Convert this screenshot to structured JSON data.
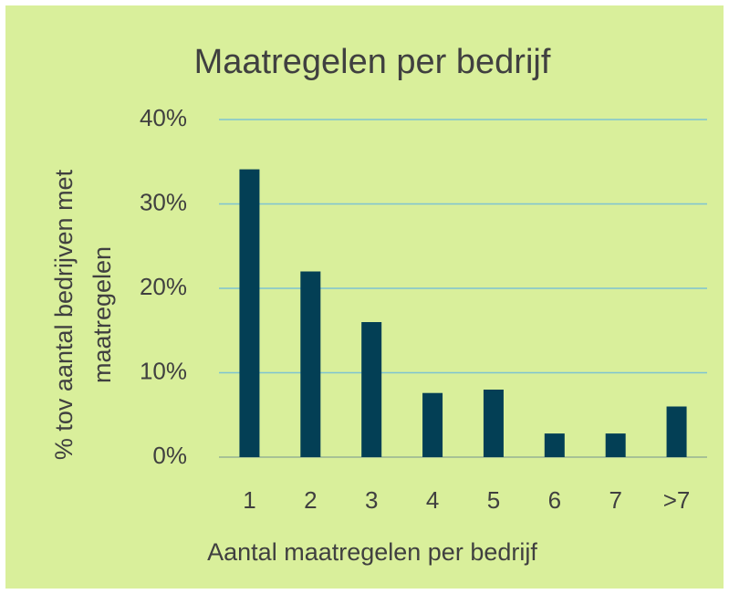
{
  "chart_data": {
    "type": "bar",
    "title": "Maatregelen per bedrijf",
    "y_label": [
      "% tov aantal bedrijven met",
      "maatregelen"
    ],
    "x_label": "Aantal maatregelen per bedrijf",
    "categories": [
      "1",
      "2",
      "3",
      "4",
      "5",
      "6",
      "7",
      ">7"
    ],
    "values": [
      34.1,
      22,
      16,
      7.6,
      8,
      2.8,
      2.8,
      6
    ],
    "color": "#033f55",
    "ylim": [
      0,
      40
    ],
    "yticks": [
      {
        "value": 0,
        "label": "0%"
      },
      {
        "value": 10,
        "label": "10%"
      },
      {
        "value": 20,
        "label": "20%"
      },
      {
        "value": 30,
        "label": "30%"
      },
      {
        "value": 40,
        "label": "40%"
      }
    ],
    "grid": true
  }
}
